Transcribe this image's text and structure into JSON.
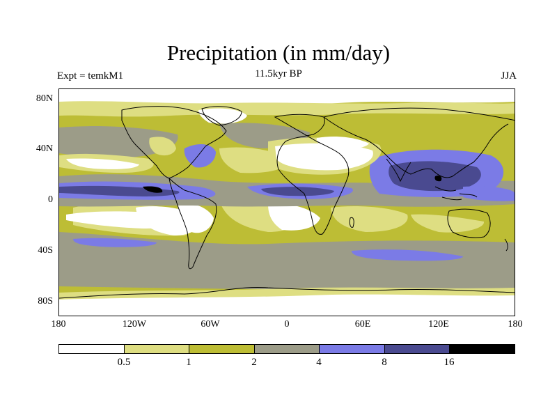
{
  "title": "Precipitation (in mm/day)",
  "subtitle_left": "Expt = temkM1",
  "subtitle_center": "11.5kyr BP",
  "subtitle_right": "JJA",
  "map": {
    "lat_labels": [
      "80N",
      "40N",
      "0",
      "40S",
      "80S"
    ],
    "lon_labels": [
      "180",
      "120W",
      "60W",
      "0",
      "60E",
      "120E",
      "180"
    ]
  },
  "colorbar": {
    "labels": [
      "0.5",
      "1",
      "2",
      "4",
      "8",
      "16"
    ],
    "colors": [
      "#ffffff",
      "#dede82",
      "#bdbd35",
      "#9c9c88",
      "#7b7be6",
      "#4a4a90",
      "#000000"
    ]
  },
  "colors": {
    "very_dry": "#ffffff",
    "dry": "#dede82",
    "moderate": "#bdbd35",
    "wet": "#9c9c88",
    "very_wet": "#7b7be6",
    "extreme": "#4a4a90",
    "max": "#000000"
  }
}
